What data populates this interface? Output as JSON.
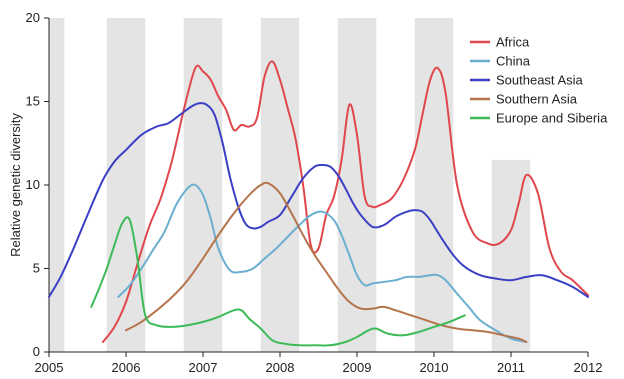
{
  "chart_data": {
    "type": "line",
    "title": "",
    "xlabel": "",
    "ylabel": "Relative genetic diversity",
    "xlim": [
      2005,
      2012
    ],
    "ylim": [
      0,
      20
    ],
    "x_ticks": [
      "2005",
      "2006",
      "2007",
      "2008",
      "2009",
      "2010",
      "2011",
      "2012"
    ],
    "y_ticks": [
      "0",
      "5",
      "10",
      "15",
      "20"
    ],
    "grid": false,
    "legend_position": "top-right",
    "shaded_periods": [
      {
        "x": [
          2005.0,
          2005.2
        ],
        "y": [
          0,
          20
        ]
      },
      {
        "x": [
          2005.75,
          2006.25
        ],
        "y": [
          0,
          20
        ]
      },
      {
        "x": [
          2006.75,
          2007.25
        ],
        "y": [
          0,
          20
        ]
      },
      {
        "x": [
          2007.75,
          2008.25
        ],
        "y": [
          0,
          20
        ]
      },
      {
        "x": [
          2008.75,
          2009.25
        ],
        "y": [
          0,
          20
        ]
      },
      {
        "x": [
          2009.75,
          2010.25
        ],
        "y": [
          0,
          20
        ]
      },
      {
        "x": [
          2010.75,
          2011.25
        ],
        "y": [
          0,
          11.5
        ]
      }
    ],
    "series": [
      {
        "name": "Africa",
        "color": "#e0474c",
        "x": [
          2005.7,
          2005.85,
          2006.0,
          2006.15,
          2006.3,
          2006.45,
          2006.6,
          2006.75,
          2006.9,
          2007.0,
          2007.1,
          2007.2,
          2007.3,
          2007.4,
          2007.5,
          2007.6,
          2007.7,
          2007.8,
          2007.9,
          2008.0,
          2008.1,
          2008.2,
          2008.3,
          2008.4,
          2008.5,
          2008.6,
          2008.7,
          2008.8,
          2008.9,
          2009.0,
          2009.1,
          2009.2,
          2009.3,
          2009.45,
          2009.6,
          2009.75,
          2009.85,
          2009.95,
          2010.05,
          2010.15,
          2010.3,
          2010.5,
          2010.7,
          2010.85,
          2011.0,
          2011.1,
          2011.2,
          2011.35,
          2011.5,
          2011.65,
          2011.8,
          2012.0
        ],
        "y": [
          0.6,
          1.5,
          3.0,
          5.3,
          7.5,
          9.2,
          11.5,
          14.5,
          17.0,
          16.8,
          16.3,
          15.3,
          14.5,
          13.3,
          13.6,
          13.5,
          14.0,
          16.5,
          17.4,
          16.3,
          14.6,
          12.8,
          10.0,
          6.4,
          6.2,
          8.2,
          9.3,
          11.5,
          14.8,
          13.0,
          9.3,
          8.7,
          8.8,
          9.2,
          10.3,
          12.1,
          14.2,
          16.3,
          17.0,
          15.5,
          10.0,
          7.2,
          6.5,
          6.5,
          7.3,
          8.9,
          10.6,
          9.5,
          6.2,
          4.8,
          4.3,
          3.4
        ]
      },
      {
        "name": "China",
        "color": "#6aaed0",
        "x": [
          2005.9,
          2006.05,
          2006.2,
          2006.35,
          2006.5,
          2006.65,
          2006.8,
          2006.9,
          2007.0,
          2007.1,
          2007.2,
          2007.35,
          2007.5,
          2007.65,
          2007.8,
          2007.95,
          2008.1,
          2008.25,
          2008.4,
          2008.55,
          2008.7,
          2008.8,
          2008.9,
          2009.0,
          2009.1,
          2009.2,
          2009.35,
          2009.5,
          2009.65,
          2009.8,
          2009.95,
          2010.05,
          2010.15,
          2010.3,
          2010.45,
          2010.6,
          2010.8,
          2011.0,
          2011.2
        ],
        "y": [
          3.3,
          4.0,
          5.0,
          6.1,
          7.2,
          8.8,
          9.8,
          10.0,
          9.4,
          8.0,
          6.2,
          4.9,
          4.8,
          5.0,
          5.6,
          6.2,
          6.9,
          7.6,
          8.2,
          8.4,
          7.9,
          7.0,
          5.8,
          4.6,
          4.0,
          4.1,
          4.2,
          4.3,
          4.5,
          4.5,
          4.6,
          4.6,
          4.3,
          3.5,
          2.7,
          1.9,
          1.3,
          0.8,
          0.6
        ]
      },
      {
        "name": "Southeast Asia",
        "color": "#3b3fc4",
        "x": [
          2005.0,
          2005.15,
          2005.3,
          2005.5,
          2005.7,
          2005.85,
          2006.0,
          2006.2,
          2006.4,
          2006.55,
          2006.7,
          2006.85,
          2006.95,
          2007.05,
          2007.15,
          2007.25,
          2007.35,
          2007.45,
          2007.55,
          2007.65,
          2007.75,
          2007.85,
          2008.0,
          2008.15,
          2008.3,
          2008.45,
          2008.55,
          2008.65,
          2008.75,
          2008.85,
          2008.95,
          2009.05,
          2009.2,
          2009.35,
          2009.5,
          2009.65,
          2009.75,
          2009.85,
          2009.95,
          2010.1,
          2010.25,
          2010.4,
          2010.6,
          2010.8,
          2011.0,
          2011.2,
          2011.4,
          2011.6,
          2011.8,
          2012.0
        ],
        "y": [
          3.3,
          4.5,
          6.0,
          8.2,
          10.3,
          11.4,
          12.1,
          13.0,
          13.5,
          13.7,
          14.2,
          14.7,
          14.9,
          14.8,
          14.2,
          12.6,
          10.5,
          8.8,
          7.7,
          7.4,
          7.5,
          7.8,
          8.2,
          9.3,
          10.4,
          11.1,
          11.2,
          11.1,
          10.6,
          9.8,
          8.9,
          8.2,
          7.5,
          7.6,
          8.1,
          8.4,
          8.5,
          8.4,
          7.9,
          6.8,
          5.8,
          5.1,
          4.6,
          4.4,
          4.3,
          4.5,
          4.6,
          4.3,
          3.9,
          3.3
        ]
      },
      {
        "name": "Southern Asia",
        "color": "#b5744c",
        "x": [
          2006.0,
          2006.2,
          2006.4,
          2006.6,
          2006.8,
          2007.0,
          2007.2,
          2007.4,
          2007.6,
          2007.75,
          2007.85,
          2008.0,
          2008.15,
          2008.3,
          2008.45,
          2008.6,
          2008.75,
          2008.9,
          2009.05,
          2009.2,
          2009.35,
          2009.5,
          2009.7,
          2009.9,
          2010.1,
          2010.3,
          2010.5,
          2010.7,
          2010.9,
          2011.1,
          2011.2
        ],
        "y": [
          1.3,
          1.8,
          2.5,
          3.3,
          4.3,
          5.6,
          7.0,
          8.3,
          9.4,
          10.0,
          10.1,
          9.5,
          8.3,
          7.0,
          5.8,
          4.8,
          3.8,
          3.0,
          2.6,
          2.6,
          2.7,
          2.5,
          2.2,
          1.9,
          1.6,
          1.4,
          1.3,
          1.2,
          1.0,
          0.8,
          0.6
        ]
      },
      {
        "name": "Europe and Siberia",
        "color": "#3dbb58",
        "x": [
          2005.55,
          2005.65,
          2005.75,
          2005.85,
          2005.95,
          2006.05,
          2006.15,
          2006.25,
          2006.4,
          2006.6,
          2006.8,
          2007.0,
          2007.2,
          2007.4,
          2007.5,
          2007.6,
          2007.75,
          2007.9,
          2008.05,
          2008.25,
          2008.45,
          2008.65,
          2008.85,
          2009.0,
          2009.15,
          2009.25,
          2009.4,
          2009.6,
          2009.8,
          2010.0,
          2010.2,
          2010.4
        ],
        "y": [
          2.7,
          3.8,
          5.0,
          6.4,
          7.7,
          7.9,
          5.5,
          2.2,
          1.6,
          1.5,
          1.6,
          1.8,
          2.1,
          2.5,
          2.5,
          2.0,
          1.4,
          0.7,
          0.5,
          0.4,
          0.4,
          0.4,
          0.6,
          0.9,
          1.3,
          1.4,
          1.1,
          1.0,
          1.2,
          1.5,
          1.8,
          2.2
        ]
      }
    ]
  }
}
